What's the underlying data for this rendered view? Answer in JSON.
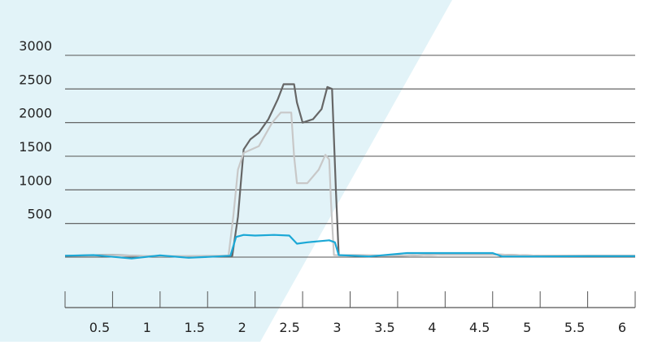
{
  "chart_data": {
    "type": "line",
    "title": "",
    "xlabel": "",
    "ylabel": "",
    "xlim": [
      0,
      6
    ],
    "ylim": [
      0,
      3000
    ],
    "grid": "horizontal",
    "x_ticks": [
      "0.5",
      "1",
      "1.5",
      "2",
      "2.5",
      "3",
      "3.5",
      "4",
      "4.5",
      "5",
      "5.5",
      "6"
    ],
    "y_ticks": [
      "500",
      "1000",
      "1500",
      "2000",
      "2500",
      "3000"
    ],
    "colors": {
      "background_band": "#e2f3f8",
      "grid": "#555555",
      "axis": "#555555"
    },
    "series": [
      {
        "color": "#666666",
        "x": [
          0,
          0.5,
          1,
          1.5,
          1.76,
          1.82,
          1.88,
          1.95,
          2.04,
          2.14,
          2.24,
          2.3,
          2.41,
          2.44,
          2.5,
          2.61,
          2.7,
          2.76,
          2.81,
          2.85,
          2.88,
          3.5,
          4,
          4.5,
          5,
          6
        ],
        "y": [
          20,
          30,
          10,
          15,
          20,
          600,
          1600,
          1750,
          1850,
          2050,
          2350,
          2570,
          2570,
          2300,
          2000,
          2050,
          2200,
          2530,
          2500,
          1000,
          30,
          20,
          40,
          40,
          20,
          20
        ]
      },
      {
        "color": "#c8c8c8",
        "x": [
          0,
          0.5,
          1,
          1.5,
          1.72,
          1.77,
          1.82,
          1.88,
          2.04,
          2.18,
          2.27,
          2.38,
          2.41,
          2.44,
          2.55,
          2.67,
          2.74,
          2.78,
          2.8,
          2.83,
          3.5,
          4,
          4.5,
          5,
          6
        ],
        "y": [
          20,
          25,
          15,
          20,
          20,
          600,
          1300,
          1550,
          1650,
          2000,
          2150,
          2150,
          1500,
          1100,
          1100,
          1300,
          1520,
          1450,
          800,
          30,
          20,
          40,
          40,
          20,
          20
        ]
      },
      {
        "color": "#1ba8d6",
        "x": [
          0,
          0.3,
          0.7,
          1,
          1.3,
          1.6,
          1.74,
          1.8,
          1.88,
          2.0,
          2.2,
          2.36,
          2.44,
          2.55,
          2.7,
          2.78,
          2.84,
          2.88,
          3.2,
          3.6,
          4.0,
          4.5,
          4.6,
          5,
          5.5,
          6
        ],
        "y": [
          20,
          30,
          -20,
          25,
          -10,
          10,
          20,
          300,
          330,
          320,
          330,
          320,
          200,
          220,
          240,
          250,
          220,
          30,
          10,
          60,
          60,
          60,
          10,
          10,
          15,
          15
        ]
      }
    ]
  }
}
